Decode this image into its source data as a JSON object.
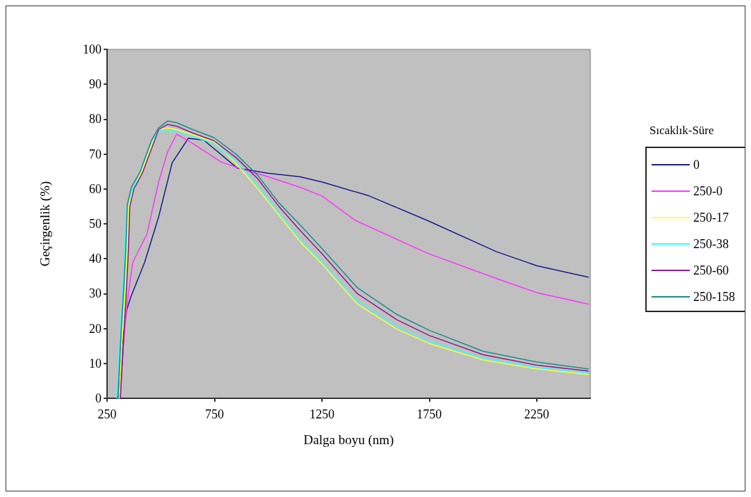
{
  "chart_data": {
    "type": "line",
    "xlabel": "Dalga boyu (nm)",
    "ylabel": "Geçirgenlik (%)",
    "legend_title": "Sıcaklık-Süre",
    "legend": "right",
    "grid": false,
    "marker": "none",
    "line_style": "solid",
    "xlim": [
      250,
      2500
    ],
    "xticks": [
      250,
      750,
      1250,
      1750,
      2250
    ],
    "ylim": [
      0,
      100
    ],
    "yticks": [
      0,
      10,
      20,
      30,
      40,
      50,
      60,
      70,
      80,
      90,
      100
    ],
    "x": [
      300,
      315,
      328,
      337,
      344,
      363,
      402,
      457,
      490,
      532,
      574,
      650,
      748,
      850,
      950,
      1050,
      1150,
      1250,
      1415,
      1600,
      1750,
      2000,
      2250,
      2490
    ],
    "series": [
      {
        "name": "0",
        "color": "#1a1a8c",
        "x": [
          295,
          305,
          320,
          340,
          360,
          425,
          490,
          553,
          628,
          700,
          855,
          1000,
          1147,
          1250,
          1470,
          1740,
          2063,
          2250,
          2490
        ],
        "values": [
          0,
          0.8,
          15,
          25,
          29,
          39,
          52,
          67.5,
          74.5,
          74,
          66,
          64.5,
          63.5,
          62,
          58,
          51,
          42,
          38,
          34.7
        ]
      },
      {
        "name": "250-0",
        "color": "#ff33ff",
        "x": [
          310,
          320,
          335,
          347,
          370,
          435,
          490,
          532,
          574,
          650,
          781,
          878,
          1000,
          1147,
          1250,
          1405,
          1740,
          2063,
          2250,
          2490
        ],
        "values": [
          0,
          10,
          22,
          29,
          39,
          47,
          62,
          70.7,
          75.7,
          73,
          67.7,
          65.7,
          63.5,
          60.5,
          58,
          51,
          41.6,
          34.3,
          30.3,
          27
        ]
      },
      {
        "name": "250-17",
        "color": "#ffff33",
        "x": [
          306,
          321,
          334,
          343,
          350,
          369,
          408,
          463,
          490,
          532,
          574,
          650,
          748,
          850,
          950,
          1050,
          1150,
          1250,
          1415,
          1600,
          1750,
          2000,
          2250,
          2490
        ],
        "values": [
          0,
          18,
          31,
          42,
          55,
          59,
          64.5,
          73.5,
          77,
          77.5,
          77,
          75.5,
          73.5,
          67.3,
          60.2,
          52.5,
          44.8,
          38.5,
          27,
          19.8,
          15.7,
          11,
          8.4,
          6.8
        ]
      },
      {
        "name": "250-38",
        "color": "#33ffff",
        "x": [
          294,
          309,
          322,
          331,
          338,
          357,
          396,
          451,
          490,
          532,
          574,
          650,
          748,
          850,
          950,
          1050,
          1150,
          1250,
          1415,
          1600,
          1750,
          2000,
          2250,
          2490
        ],
        "values": [
          0,
          18,
          31,
          42,
          54,
          58,
          64,
          73,
          76.5,
          77,
          76.5,
          75,
          73,
          68,
          61,
          53,
          45.5,
          39,
          27.8,
          20.5,
          16.3,
          11.5,
          8.8,
          7.2
        ]
      },
      {
        "name": "250-60",
        "color": "#8c1a8c",
        "x": [
          312,
          327,
          340,
          349,
          356,
          375,
          414,
          469,
          490,
          532,
          574,
          650,
          748,
          850,
          950,
          1050,
          1150,
          1250,
          1415,
          1600,
          1750,
          2000,
          2250,
          2490
        ],
        "values": [
          0,
          17,
          31,
          42,
          55,
          60,
          64.5,
          73.5,
          77,
          78.5,
          78,
          76,
          73.8,
          69,
          63,
          55,
          48,
          41.5,
          30,
          22.5,
          18,
          12.5,
          9.5,
          7.8
        ]
      },
      {
        "name": "250-158",
        "color": "#1a8c8c",
        "values": [
          0,
          19,
          32,
          43,
          55.5,
          60.5,
          64.7,
          74,
          77.5,
          79.5,
          79,
          77,
          74.7,
          70,
          64,
          56,
          49.6,
          43,
          31.7,
          24,
          19.5,
          13.5,
          10.4,
          8.4
        ]
      }
    ]
  }
}
